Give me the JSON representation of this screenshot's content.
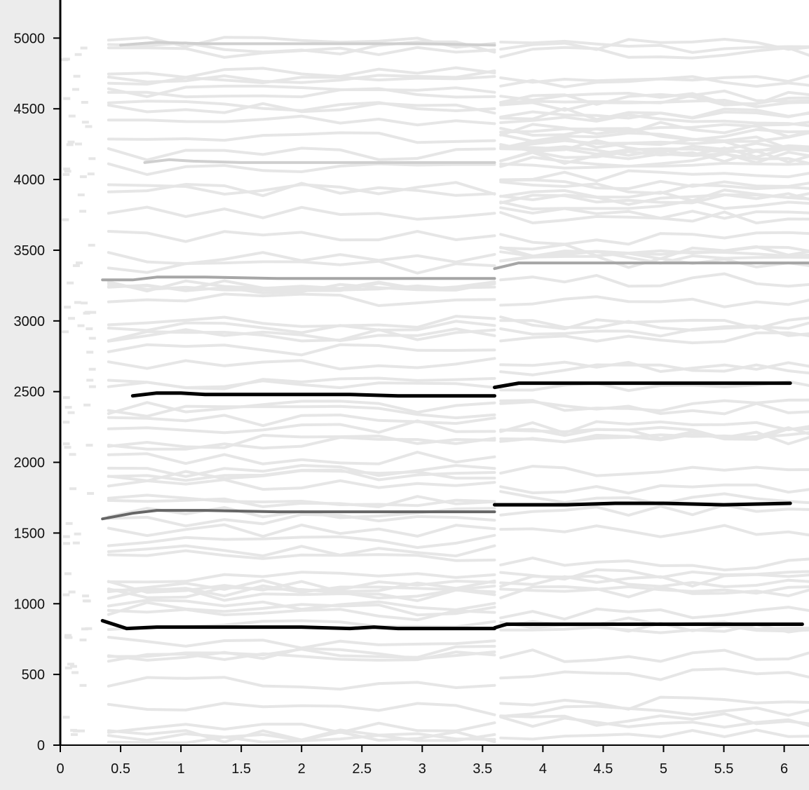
{
  "chart_data": {
    "type": "line",
    "title": "",
    "xlabel": "",
    "ylabel": "",
    "xlim": [
      0,
      6.2
    ],
    "ylim": [
      0,
      5200
    ],
    "x_ticks": [
      "0",
      "0.5",
      "1",
      "1.5",
      "2",
      "2.5",
      "3",
      "3.5",
      "4",
      "4.5",
      "5",
      "5.5",
      "6",
      "6."
    ],
    "y_ticks": [
      "0",
      "500",
      "1000",
      "1500",
      "2000",
      "2500",
      "3000",
      "3500",
      "4000",
      "4500",
      "5000"
    ],
    "grid": false,
    "legend": "none",
    "colors": {
      "background": "#ececec",
      "plot_background": "#ffffff",
      "axis": "#000000",
      "faint_track": "#e6e6e6",
      "strong_track": "#000000",
      "medium_track": "#666666",
      "light_track": "#a6a6a6"
    },
    "series": [
      {
        "x": [
          0.35,
          0.55,
          0.8,
          1.2,
          1.6,
          2.0,
          2.4,
          2.6,
          2.8,
          3.2,
          3.6
        ],
        "y": [
          880,
          825,
          835,
          835,
          835,
          835,
          825,
          835,
          825,
          825,
          825
        ],
        "weight": "strong"
      },
      {
        "x": [
          3.6,
          3.7,
          4.0,
          4.5,
          5.0,
          5.5,
          6.0,
          6.15
        ],
        "y": [
          830,
          855,
          855,
          855,
          855,
          855,
          855,
          855
        ],
        "weight": "strong"
      },
      {
        "x": [
          0.35,
          0.6,
          0.8,
          1.2,
          1.8,
          2.4,
          3.0,
          3.6
        ],
        "y": [
          1600,
          1640,
          1660,
          1660,
          1650,
          1650,
          1650,
          1650
        ],
        "weight": "medium"
      },
      {
        "x": [
          3.6,
          3.8,
          4.2,
          4.6,
          5.0,
          5.5,
          6.05
        ],
        "y": [
          1700,
          1700,
          1700,
          1710,
          1710,
          1700,
          1710
        ],
        "weight": "strong"
      },
      {
        "x": [
          0.6,
          0.8,
          1.0,
          1.2,
          1.8,
          2.4,
          2.8,
          3.2,
          3.6
        ],
        "y": [
          2470,
          2490,
          2490,
          2480,
          2480,
          2480,
          2470,
          2470,
          2470
        ],
        "weight": "strong"
      },
      {
        "x": [
          3.6,
          3.8,
          4.2,
          4.8,
          5.4,
          6.05
        ],
        "y": [
          2530,
          2560,
          2560,
          2560,
          2560,
          2560
        ],
        "weight": "strong"
      },
      {
        "x": [
          0.35,
          0.6,
          0.8,
          1.2,
          1.8,
          2.4,
          3.0,
          3.6
        ],
        "y": [
          3290,
          3290,
          3310,
          3310,
          3300,
          3300,
          3300,
          3300
        ],
        "weight": "light"
      },
      {
        "x": [
          3.6,
          3.8,
          4.2,
          4.8,
          5.4,
          6.0,
          6.3
        ],
        "y": [
          3370,
          3410,
          3410,
          3410,
          3410,
          3410,
          3410
        ],
        "weight": "light"
      },
      {
        "x": [
          0.7,
          0.9,
          1.1,
          1.5,
          2.0,
          2.5,
          3.0,
          3.6
        ],
        "y": [
          4120,
          4140,
          4130,
          4120,
          4120,
          4120,
          4120,
          4120
        ],
        "weight": "faint"
      },
      {
        "x": [
          0.5,
          0.8,
          1.2,
          1.8,
          2.4,
          3.0,
          3.6
        ],
        "y": [
          4950,
          4970,
          4960,
          4960,
          4960,
          4960,
          4950
        ],
        "weight": "faint"
      }
    ]
  }
}
